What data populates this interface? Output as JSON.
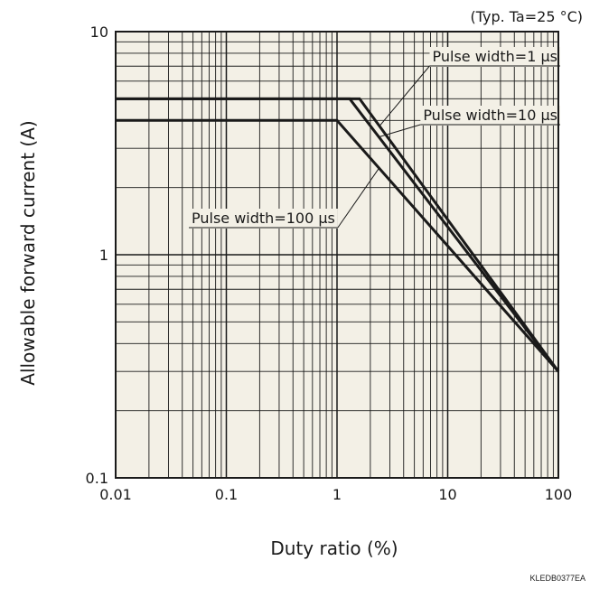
{
  "chart_data": {
    "type": "line",
    "x_scale": "log",
    "y_scale": "log",
    "xlim": [
      0.01,
      100
    ],
    "ylim": [
      0.1,
      10
    ],
    "x_ticks": [
      "0.01",
      "0.1",
      "1",
      "10",
      "100"
    ],
    "y_ticks": [
      "0.1",
      "1",
      "10"
    ],
    "xlabel": "Duty ratio (%)",
    "ylabel": "Allowable forward current (A)",
    "condition_note": "(Typ. Ta=25 °C)",
    "code_label": "KLEDB0377EA",
    "grid": true,
    "colors": {
      "background": "#f3f0e6",
      "line": "#1a1a1a"
    },
    "series": [
      {
        "name": "Pulse width=1 μs",
        "x": [
          0.01,
          1.6,
          100
        ],
        "y": [
          5.0,
          5.0,
          0.3
        ]
      },
      {
        "name": "Pulse width=10 μs",
        "x": [
          0.01,
          1.3,
          100
        ],
        "y": [
          5.0,
          5.0,
          0.3
        ]
      },
      {
        "name": "Pulse width=100 μs",
        "x": [
          0.01,
          1.0,
          100
        ],
        "y": [
          4.0,
          4.0,
          0.3
        ]
      }
    ]
  }
}
